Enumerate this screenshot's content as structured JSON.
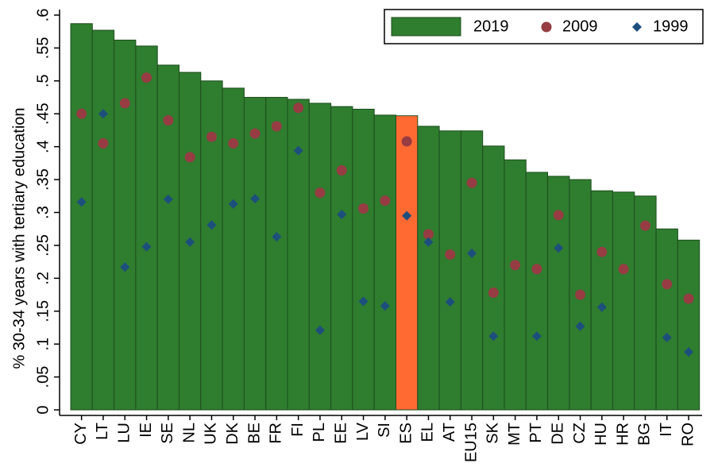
{
  "chart_data": {
    "type": "bar_scatter",
    "y_label": "% 30-34 years with tertiary education",
    "categories": [
      "CY",
      "LT",
      "LU",
      "IE",
      "SE",
      "NL",
      "UK",
      "DK",
      "BE",
      "FR",
      "FI",
      "PL",
      "EE",
      "LV",
      "SI",
      "ES",
      "EL",
      "AT",
      "EU15",
      "SK",
      "MT",
      "PT",
      "DE",
      "CZ",
      "HU",
      "HR",
      "BG",
      "IT",
      "RO"
    ],
    "series": [
      {
        "name": "2019",
        "kind": "bar",
        "color": "#2f7d2f",
        "colors": [
          "#2f7d2f",
          "#2f7d2f",
          "#2f7d2f",
          "#2f7d2f",
          "#2f7d2f",
          "#2f7d2f",
          "#2f7d2f",
          "#2f7d2f",
          "#2f7d2f",
          "#2f7d2f",
          "#2f7d2f",
          "#2f7d2f",
          "#2f7d2f",
          "#2f7d2f",
          "#2f7d2f",
          "#ff6a33",
          "#2f7d2f",
          "#2f7d2f",
          "#2f7d2f",
          "#2f7d2f",
          "#2f7d2f",
          "#2f7d2f",
          "#2f7d2f",
          "#2f7d2f",
          "#2f7d2f",
          "#2f7d2f",
          "#2f7d2f",
          "#2f7d2f",
          "#2f7d2f"
        ],
        "values": [
          0.587,
          0.577,
          0.562,
          0.553,
          0.524,
          0.513,
          0.5,
          0.489,
          0.475,
          0.475,
          0.472,
          0.466,
          0.461,
          0.457,
          0.448,
          0.447,
          0.431,
          0.424,
          0.424,
          0.401,
          0.38,
          0.361,
          0.355,
          0.35,
          0.333,
          0.331,
          0.325,
          0.275,
          0.258
        ]
      },
      {
        "name": "2009",
        "kind": "circle",
        "color": "#963c42",
        "values": [
          0.45,
          0.405,
          0.466,
          0.505,
          0.44,
          0.384,
          0.415,
          0.405,
          0.42,
          0.431,
          0.459,
          0.33,
          0.364,
          0.306,
          0.318,
          0.408,
          0.267,
          0.236,
          0.345,
          0.178,
          0.22,
          0.214,
          0.296,
          0.175,
          0.24,
          0.214,
          0.28,
          0.191,
          0.169
        ]
      },
      {
        "name": "1999",
        "kind": "diamond",
        "color": "#1c4f7c",
        "values": [
          0.316,
          0.45,
          0.217,
          0.248,
          0.32,
          0.255,
          0.281,
          0.313,
          0.321,
          0.263,
          0.394,
          0.121,
          0.297,
          0.165,
          0.158,
          0.295,
          0.255,
          0.164,
          0.238,
          0.112,
          null,
          0.112,
          0.246,
          0.127,
          0.156,
          null,
          null,
          0.11,
          0.088
        ]
      }
    ],
    "ylim": [
      0,
      0.6
    ],
    "yticks": [
      0,
      {
        "value": 0.05,
        "label": ".05"
      },
      {
        "value": 0.1,
        "label": ".1"
      },
      {
        "value": 0.15,
        "label": ".15"
      },
      {
        "value": 0.2,
        "label": ".2"
      },
      {
        "value": 0.25,
        "label": ".25"
      },
      {
        "value": 0.3,
        "label": ".3"
      },
      {
        "value": 0.35,
        "label": ".35"
      },
      {
        "value": 0.4,
        "label": ".4"
      },
      {
        "value": 0.45,
        "label": ".45"
      },
      {
        "value": 0.5,
        "label": ".5"
      },
      {
        "value": 0.55,
        "label": ".55"
      },
      {
        "value": 0.6,
        "label": ".6"
      }
    ],
    "legend": "upper right"
  }
}
